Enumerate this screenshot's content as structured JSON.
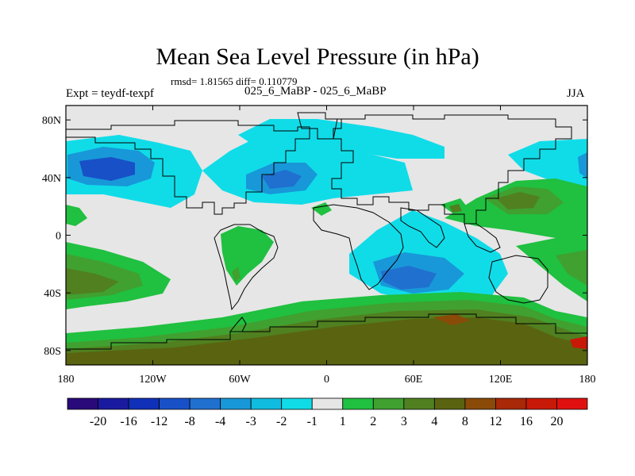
{
  "title": "Mean Sea Level Pressure (in hPa)",
  "stats": "rmsd= 1.81565 diff= 0.110779",
  "expt": "Expt = teydf-texpf",
  "subtitle": "025_6_MaBP - 025_6_MaBP",
  "season": "JJA",
  "map": {
    "lon_range": [
      -180,
      180
    ],
    "lat_range": [
      -90,
      90
    ],
    "lon_ticks": [
      {
        "value": -180,
        "label": "180"
      },
      {
        "value": -120,
        "label": "120W"
      },
      {
        "value": -60,
        "label": "60W"
      },
      {
        "value": 0,
        "label": "0"
      },
      {
        "value": 60,
        "label": "60E"
      },
      {
        "value": 120,
        "label": "120E"
      },
      {
        "value": 180,
        "label": "180"
      }
    ],
    "lat_ticks": [
      {
        "value": 80,
        "label": "80N"
      },
      {
        "value": 40,
        "label": "40N"
      },
      {
        "value": 0,
        "label": "0"
      },
      {
        "value": -40,
        "label": "40S"
      },
      {
        "value": -80,
        "label": "80S"
      }
    ]
  },
  "colorbar": {
    "colors": [
      "#2a0a7a",
      "#1a1aa0",
      "#1030b8",
      "#1850c8",
      "#2070d0",
      "#1898d8",
      "#10bce0",
      "#10dce8",
      "#e6e6e6",
      "#20c040",
      "#40a030",
      "#508020",
      "#5a6410",
      "#8a4a08",
      "#a82808",
      "#c81808",
      "#e01010"
    ],
    "labels": [
      "-20",
      "-16",
      "-12",
      "-8",
      "-4",
      "-3",
      "-2",
      "-1",
      "1",
      "2",
      "3",
      "4",
      "8",
      "12",
      "16",
      "20"
    ]
  }
}
